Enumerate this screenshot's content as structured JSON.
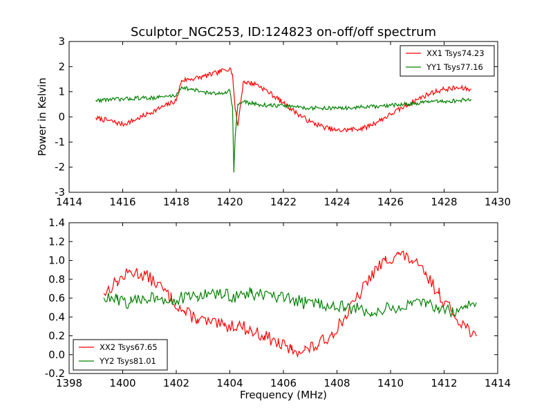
{
  "chart_data": [
    {
      "type": "line",
      "title": "Sculptor_NGC253, ID:124823 on-off/off spectrum",
      "xlabel": "",
      "ylabel": "Power in Kelvin",
      "xlim": [
        1414,
        1430
      ],
      "ylim": [
        -3,
        3
      ],
      "x_ticks": [
        1414,
        1416,
        1418,
        1420,
        1422,
        1424,
        1426,
        1428,
        1430
      ],
      "y_ticks": [
        -3,
        -2,
        -1,
        0,
        1,
        2,
        3
      ],
      "legend_position": "top-right",
      "grid": false,
      "series": [
        {
          "name": "XX1 Tsys74.23",
          "color": "#ff0000",
          "x": [
            1415.0,
            1415.5,
            1416.0,
            1416.5,
            1417.0,
            1417.5,
            1418.0,
            1418.2,
            1418.5,
            1419.0,
            1419.5,
            1420.0,
            1420.1,
            1420.2,
            1420.3,
            1420.5,
            1421.0,
            1421.5,
            1422.0,
            1422.5,
            1423.0,
            1423.5,
            1424.0,
            1424.5,
            1425.0,
            1425.5,
            1426.0,
            1426.5,
            1427.0,
            1427.5,
            1428.0,
            1428.5,
            1429.0
          ],
          "y": [
            -0.05,
            -0.15,
            -0.3,
            -0.1,
            0.15,
            0.4,
            0.65,
            1.45,
            1.5,
            1.6,
            1.75,
            1.95,
            1.7,
            0.3,
            -0.35,
            1.4,
            1.3,
            0.95,
            0.55,
            0.15,
            -0.2,
            -0.4,
            -0.55,
            -0.5,
            -0.45,
            -0.2,
            0.1,
            0.4,
            0.7,
            0.95,
            1.1,
            1.15,
            1.1
          ]
        },
        {
          "name": "YY1 Tsys77.16",
          "color": "#008000",
          "x": [
            1415.0,
            1415.5,
            1416.0,
            1416.5,
            1417.0,
            1417.5,
            1418.0,
            1418.2,
            1418.5,
            1419.0,
            1419.5,
            1420.0,
            1420.1,
            1420.15,
            1420.2,
            1420.3,
            1420.5,
            1421.0,
            1421.5,
            1422.0,
            1422.5,
            1423.0,
            1423.5,
            1424.0,
            1424.5,
            1425.0,
            1425.5,
            1426.0,
            1426.5,
            1427.0,
            1427.5,
            1428.0,
            1428.5,
            1429.0
          ],
          "y": [
            0.65,
            0.7,
            0.7,
            0.75,
            0.75,
            0.8,
            0.85,
            1.2,
            1.1,
            1.0,
            0.9,
            1.05,
            0.4,
            -2.2,
            -0.75,
            0.5,
            0.6,
            0.5,
            0.45,
            0.45,
            0.4,
            0.35,
            0.35,
            0.35,
            0.35,
            0.4,
            0.4,
            0.45,
            0.5,
            0.55,
            0.6,
            0.6,
            0.65,
            0.7
          ]
        }
      ]
    },
    {
      "type": "line",
      "title": "",
      "xlabel": "Frequency (MHz)",
      "ylabel": "",
      "xlim": [
        1398,
        1414
      ],
      "ylim": [
        -0.2,
        1.4
      ],
      "x_ticks": [
        1398,
        1400,
        1402,
        1404,
        1406,
        1408,
        1410,
        1412,
        1414
      ],
      "y_ticks": [
        "-0.2",
        "0.0",
        "0.2",
        "0.4",
        "0.6",
        "0.8",
        "1.0",
        "1.2",
        "1.4"
      ],
      "legend_position": "bottom-left",
      "grid": false,
      "series": [
        {
          "name": "XX2 Tsys67.65",
          "color": "#ff0000",
          "x": [
            1399.3,
            1399.8,
            1400.3,
            1400.8,
            1401.3,
            1401.8,
            1402.3,
            1402.8,
            1403.3,
            1403.8,
            1404.3,
            1404.8,
            1405.3,
            1405.8,
            1406.3,
            1406.8,
            1407.3,
            1407.8,
            1408.3,
            1408.8,
            1409.3,
            1409.8,
            1410.3,
            1410.8,
            1411.3,
            1411.8,
            1412.3,
            1412.8,
            1413.2
          ],
          "y": [
            0.65,
            0.78,
            0.88,
            0.85,
            0.75,
            0.6,
            0.45,
            0.38,
            0.33,
            0.3,
            0.32,
            0.25,
            0.2,
            0.12,
            0.05,
            0.05,
            0.1,
            0.22,
            0.4,
            0.62,
            0.85,
            1.0,
            1.07,
            1.0,
            0.85,
            0.65,
            0.45,
            0.3,
            0.2
          ]
        },
        {
          "name": "YY2 Tsys81.01",
          "color": "#008000",
          "x": [
            1399.3,
            1399.8,
            1400.3,
            1400.8,
            1401.3,
            1401.8,
            1402.3,
            1402.8,
            1403.3,
            1403.8,
            1404.3,
            1404.8,
            1405.3,
            1405.8,
            1406.3,
            1406.8,
            1407.3,
            1407.8,
            1408.3,
            1408.8,
            1409.3,
            1409.8,
            1410.3,
            1410.8,
            1411.3,
            1411.8,
            1412.3,
            1412.8,
            1413.2
          ],
          "y": [
            0.6,
            0.58,
            0.55,
            0.6,
            0.62,
            0.58,
            0.6,
            0.62,
            0.65,
            0.63,
            0.62,
            0.65,
            0.63,
            0.6,
            0.58,
            0.55,
            0.55,
            0.52,
            0.5,
            0.48,
            0.45,
            0.48,
            0.5,
            0.52,
            0.55,
            0.5,
            0.45,
            0.5,
            0.55
          ]
        }
      ]
    }
  ]
}
